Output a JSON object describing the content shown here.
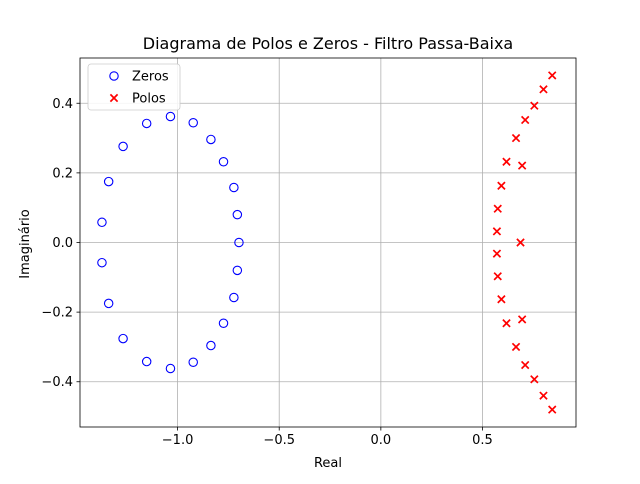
{
  "chart_data": {
    "type": "scatter",
    "title": "Diagrama de Polos e Zeros - Filtro Passa-Baixa",
    "xlabel": "Real",
    "ylabel": "Imaginário",
    "xlim": [
      -1.48,
      0.96
    ],
    "ylim": [
      -0.53,
      0.53
    ],
    "xticks": [
      -1.0,
      -0.5,
      0.0,
      0.5
    ],
    "xtick_labels": [
      "−1.0",
      "−0.5",
      "0.0",
      "0.5"
    ],
    "yticks": [
      -0.4,
      -0.2,
      0.0,
      0.2,
      0.4
    ],
    "ytick_labels": [
      "−0.4",
      "−0.2",
      "0.0",
      "0.2",
      "0.4"
    ],
    "grid": true,
    "legend_position": "top-left",
    "series": [
      {
        "name": "Zeros",
        "marker": "open-circle",
        "color": "#0000ff",
        "points": [
          [
            -0.698,
            0.0
          ],
          [
            -0.706,
            0.08
          ],
          [
            -0.723,
            0.158
          ],
          [
            -0.774,
            0.232
          ],
          [
            -0.836,
            0.296
          ],
          [
            -0.923,
            0.344
          ],
          [
            -1.035,
            0.362
          ],
          [
            -1.152,
            0.342
          ],
          [
            -1.268,
            0.276
          ],
          [
            -1.339,
            0.175
          ],
          [
            -1.372,
            0.058
          ],
          [
            -1.372,
            -0.058
          ],
          [
            -1.339,
            -0.175
          ],
          [
            -1.268,
            -0.276
          ],
          [
            -1.152,
            -0.342
          ],
          [
            -1.035,
            -0.362
          ],
          [
            -0.923,
            -0.344
          ],
          [
            -0.836,
            -0.296
          ],
          [
            -0.774,
            -0.232
          ],
          [
            -0.723,
            -0.158
          ],
          [
            -0.706,
            -0.08
          ]
        ]
      },
      {
        "name": "Polos",
        "marker": "x",
        "color": "#ff0000",
        "points": [
          [
            0.843,
            0.48
          ],
          [
            0.8,
            0.44
          ],
          [
            0.755,
            0.393
          ],
          [
            0.71,
            0.352
          ],
          [
            0.665,
            0.3
          ],
          [
            0.695,
            0.221
          ],
          [
            0.618,
            0.232
          ],
          [
            0.593,
            0.163
          ],
          [
            0.575,
            0.097
          ],
          [
            0.571,
            0.032
          ],
          [
            0.687,
            0.0
          ],
          [
            0.571,
            -0.032
          ],
          [
            0.575,
            -0.097
          ],
          [
            0.593,
            -0.163
          ],
          [
            0.618,
            -0.232
          ],
          [
            0.695,
            -0.221
          ],
          [
            0.665,
            -0.3
          ],
          [
            0.71,
            -0.352
          ],
          [
            0.755,
            -0.393
          ],
          [
            0.8,
            -0.44
          ],
          [
            0.843,
            -0.48
          ]
        ]
      }
    ]
  }
}
